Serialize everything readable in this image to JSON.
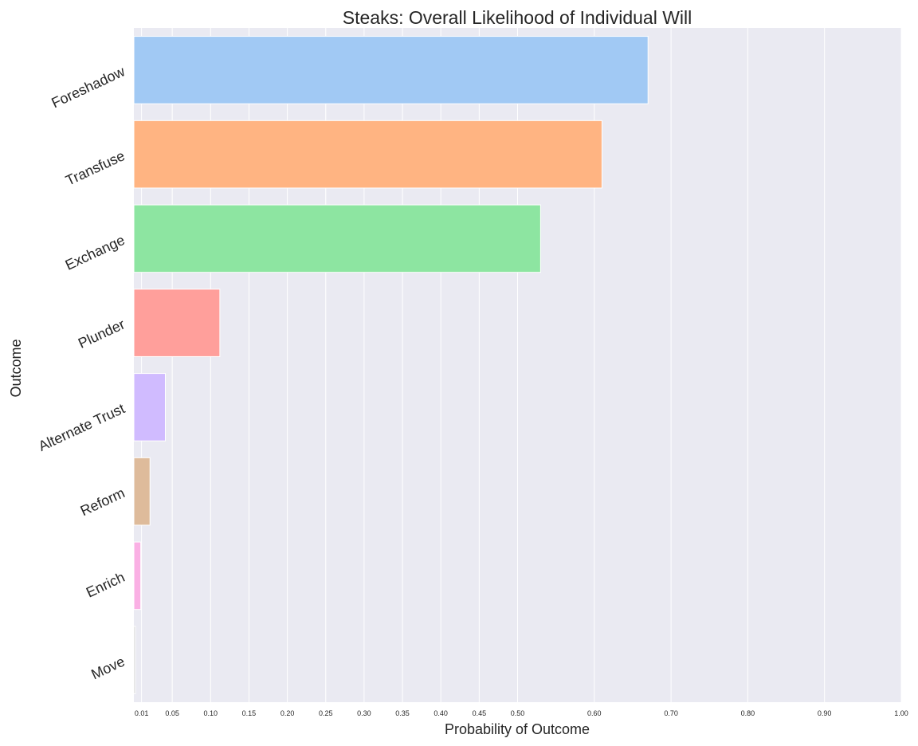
{
  "chart_data": {
    "type": "bar",
    "orientation": "horizontal",
    "title": "Steaks: Overall Likelihood of Individual Will",
    "xlabel": "Probability of Outcome",
    "ylabel": "Outcome",
    "categories": [
      "Foreshadow",
      "Transfuse",
      "Exchange",
      "Plunder",
      "Alternate Trust",
      "Reform",
      "Enrich",
      "Move"
    ],
    "values": [
      0.67,
      0.61,
      0.53,
      0.112,
      0.041,
      0.021,
      0.009,
      0.002
    ],
    "colors": [
      "#a1c9f4",
      "#ffb482",
      "#8de5a1",
      "#ff9f9b",
      "#d0bbff",
      "#debb9b",
      "#fab0e4",
      "#cfcfcf"
    ],
    "xticks": [
      0.01,
      0.05,
      0.1,
      0.15,
      0.2,
      0.25,
      0.3,
      0.35,
      0.4,
      0.45,
      0.5,
      0.6,
      0.7,
      0.8,
      0.9,
      1.0
    ],
    "xtick_labels": [
      "0.01",
      "0.05",
      "0.10",
      "0.15",
      "0.20",
      "0.25",
      "0.30",
      "0.35",
      "0.40",
      "0.45",
      "0.50",
      "0.60",
      "0.70",
      "0.80",
      "0.90",
      "1.00"
    ],
    "xlim": [
      0,
      1.0
    ],
    "grid": true,
    "background": "#eaeaf2"
  }
}
